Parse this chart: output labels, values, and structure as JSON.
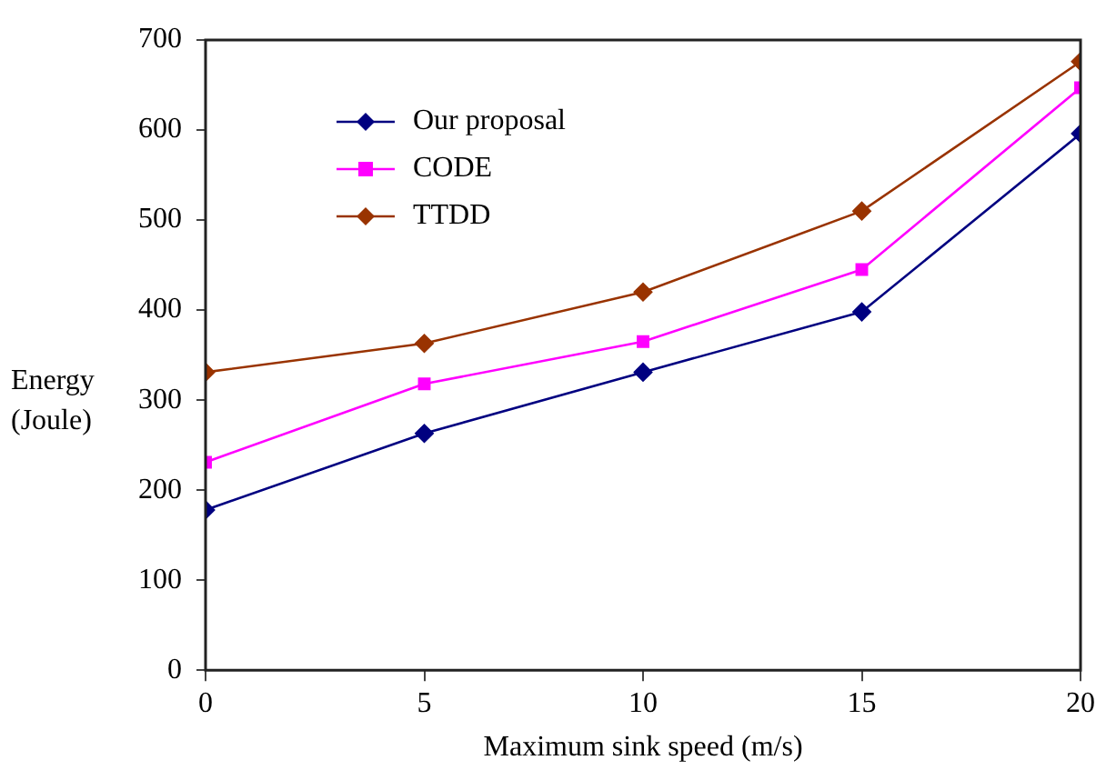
{
  "chart_data": {
    "type": "line",
    "xlabel": "Maximum sink speed (m/s)",
    "ylabel": "Energy\n(Joule)",
    "x": [
      0,
      5,
      10,
      15,
      20
    ],
    "series": [
      {
        "name": "Our proposal",
        "color": "#000080",
        "marker": "diamond",
        "values": [
          178,
          263,
          331,
          398,
          596
        ]
      },
      {
        "name": "CODE",
        "color": "#ff00ff",
        "marker": "square",
        "values": [
          231,
          318,
          365,
          445,
          647
        ]
      },
      {
        "name": "TTDD",
        "color": "#993300",
        "marker": "diamond",
        "values": [
          331,
          363,
          420,
          510,
          676
        ]
      }
    ],
    "xlim": [
      0,
      20
    ],
    "xticks": [
      0,
      5,
      10,
      15,
      20
    ],
    "ylim": [
      0,
      700
    ],
    "yticks": [
      0,
      100,
      200,
      300,
      400,
      500,
      600,
      700
    ],
    "grid": false,
    "legend": "top left",
    "line_style": "solid"
  }
}
